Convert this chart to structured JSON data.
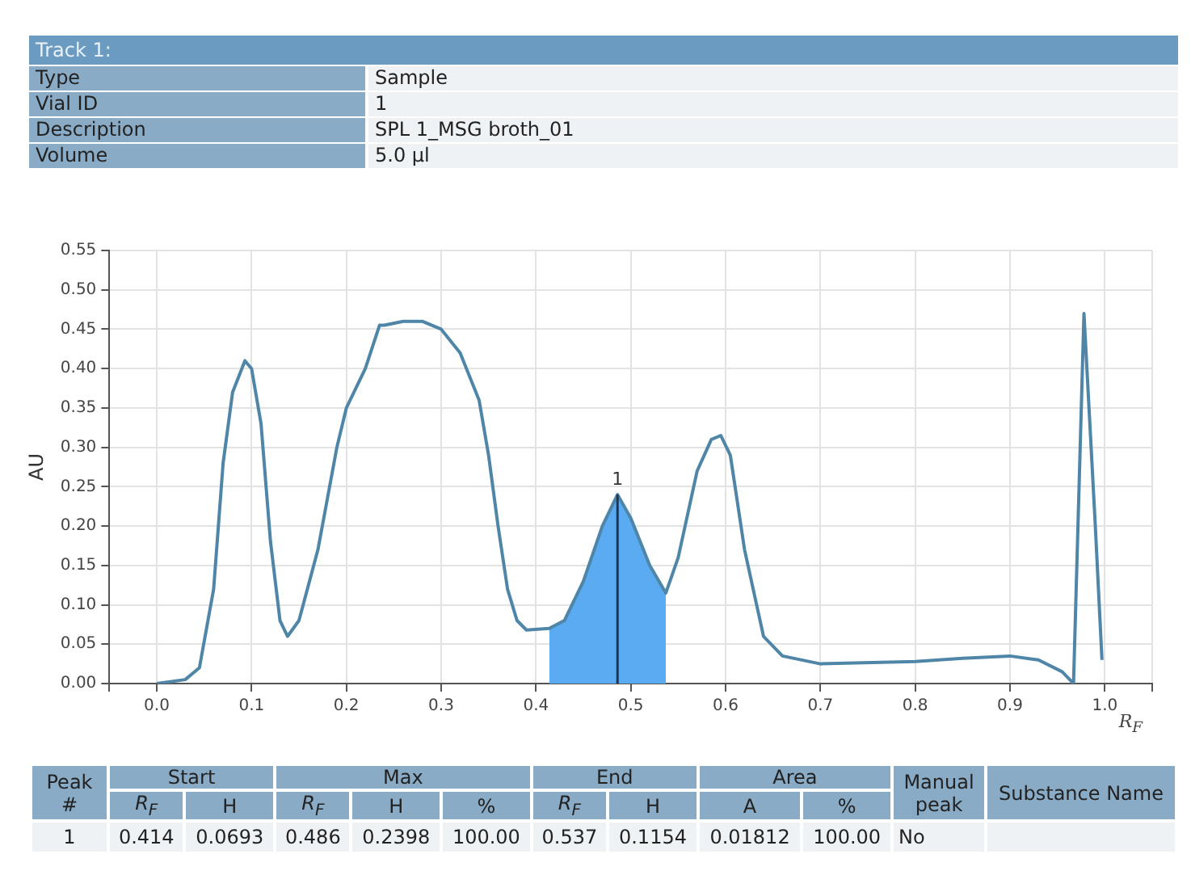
{
  "chart_data": {
    "type": "line",
    "title": "Track 1:",
    "xlabel": "R$_{F}$",
    "ylabel": "AU",
    "xlim": [
      -0.05,
      1.05
    ],
    "xticks": [
      {
        "value": -0.05,
        "label": null
      },
      {
        "value": 0,
        "label": "0.0"
      },
      0.1,
      0.2,
      0.3,
      0.4,
      0.5,
      0.6,
      0.7,
      0.8,
      0.9,
      {
        "value": 1,
        "label": "1.0"
      },
      {
        "value": 1.05,
        "label": null
      }
    ],
    "ylim": [
      0,
      0.55
    ],
    "yticks": [
      {
        "value": 0,
        "label": "0.00"
      },
      0.05,
      {
        "value": 0.1,
        "label": "0.10"
      },
      0.15,
      {
        "value": 0.2,
        "label": "0.20"
      },
      0.25,
      {
        "value": 0.3,
        "label": "0.30"
      },
      0.35,
      {
        "value": 0.4,
        "label": "0.40"
      },
      0.45,
      {
        "value": 0.5,
        "label": "0.50"
      },
      0.55
    ],
    "grid": true,
    "marker": "none",
    "line_style": "solid",
    "series": [
      {
        "type": "area",
        "color": "#5aabf2",
        "x": [
          0.414,
          0.43,
          0.45,
          0.47,
          0.486,
          0.5,
          0.52,
          0.537
        ],
        "values": [
          0.07,
          0.08,
          0.13,
          0.2,
          0.24,
          0.21,
          0.15,
          0.115
        ]
      },
      {
        "color": "#4f86a8",
        "x": [
          0,
          0.03,
          0.045,
          0.06,
          0.07,
          0.08,
          0.093,
          0.1,
          0.11,
          0.12,
          0.13,
          0.138,
          0.15,
          0.17,
          0.19,
          0.2,
          0.22,
          0.235,
          0.24,
          0.26,
          0.28,
          0.3,
          0.32,
          0.34,
          0.35,
          0.36,
          0.37,
          0.38,
          0.39,
          0.414,
          0.43,
          0.45,
          0.47,
          0.486,
          0.5,
          0.52,
          0.537,
          0.55,
          0.57,
          0.585,
          0.595,
          0.605,
          0.62,
          0.64,
          0.66,
          0.7,
          0.8,
          0.85,
          0.9,
          0.93,
          0.955,
          0.967,
          0.978,
          0.99,
          0.997
        ],
        "values": [
          0,
          0.005,
          0.02,
          0.12,
          0.28,
          0.37,
          0.41,
          0.4,
          0.33,
          0.18,
          0.08,
          0.06,
          0.08,
          0.17,
          0.3,
          0.35,
          0.4,
          0.455,
          0.455,
          0.46,
          0.46,
          0.45,
          0.42,
          0.36,
          0.29,
          0.2,
          0.12,
          0.08,
          0.068,
          0.07,
          0.08,
          0.13,
          0.2,
          0.24,
          0.21,
          0.15,
          0.115,
          0.16,
          0.27,
          0.31,
          0.315,
          0.29,
          0.17,
          0.06,
          0.035,
          0.025,
          0.028,
          0.032,
          0.035,
          0.03,
          0.015,
          0,
          0.47,
          0.2,
          0.03
        ]
      }
    ],
    "ref_lines": [
      {
        "axis": "x",
        "value": 0.486,
        "color": "#1f3550"
      }
    ],
    "annotations": [
      {
        "text": "1",
        "x": 0.486,
        "y": 0.24
      },
      "Type",
      "Sample",
      "Vial ID",
      "1",
      "Description",
      "SPL 1_MSG broth_01",
      "Volume",
      "5.0 µl",
      "Peak #",
      "Start",
      "Max",
      "End",
      "Area",
      "Manual peak",
      "Substance Name",
      "R$_{F}$",
      "H",
      "R$_{F}$",
      "H",
      "%",
      "R$_{F}$",
      "H",
      "A",
      "%",
      "1",
      "0.414",
      "0.0693",
      "0.486",
      "0.2398",
      "100.00",
      "0.537",
      "0.1154",
      "0.01812",
      "100.00",
      "No"
    ]
  }
}
